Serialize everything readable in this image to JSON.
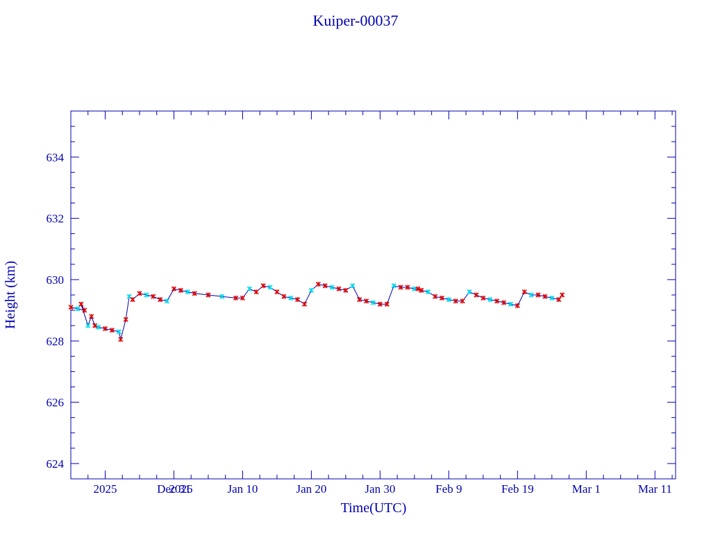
{
  "colors": {
    "text": "#0000b0",
    "axis": "#0000b0",
    "line": "#0000b0",
    "marker_red": "#dd0000",
    "marker_cyan": "#00d8e8"
  },
  "chart_data": {
    "type": "line",
    "title": "Kuiper-00037",
    "xlabel": "Time(UTC)",
    "ylabel": "Height (km)",
    "ylim": [
      623.5,
      635.5
    ],
    "xlim": [
      "2025-12-16",
      "2026-03-14"
    ],
    "yticks": [
      624,
      626,
      628,
      630,
      632,
      634
    ],
    "xtick_labels": [
      {
        "date": "2025-12-21",
        "label": "2025"
      },
      {
        "date": "2025-12-31",
        "label": "Dec 31"
      },
      {
        "date": "2026-01-01",
        "label": "2026"
      },
      {
        "date": "2026-01-10",
        "label": "Jan 10"
      },
      {
        "date": "2026-01-20",
        "label": "Jan 20"
      },
      {
        "date": "2026-01-30",
        "label": "Jan 30"
      },
      {
        "date": "2026-02-09",
        "label": "Feb  9"
      },
      {
        "date": "2026-02-19",
        "label": "Feb 19"
      },
      {
        "date": "2026-03-01",
        "label": "Mar  1"
      },
      {
        "date": "2026-03-11",
        "label": "Mar 11"
      }
    ],
    "grid": false,
    "series": [
      {
        "x": [
          "2025-12-16",
          "2025-12-17",
          "2025-12-18",
          "2025-12-17T12:00",
          "2025-12-18T12:00",
          "2025-12-19",
          "2025-12-19T12:00",
          "2025-12-20",
          "2025-12-21",
          "2025-12-22",
          "2025-12-23",
          "2025-12-23T06:00",
          "2025-12-24",
          "2025-12-24T12:00",
          "2025-12-25",
          "2025-12-26",
          "2025-12-27",
          "2025-12-28",
          "2025-12-29",
          "2025-12-30",
          "2025-12-31",
          "2026-01-01",
          "2026-01-02",
          "2026-01-03",
          "2026-01-05",
          "2026-01-07",
          "2026-01-09",
          "2026-01-10",
          "2026-01-11",
          "2026-01-12",
          "2026-01-13",
          "2026-01-14",
          "2026-01-15",
          "2026-01-16",
          "2026-01-17",
          "2026-01-18",
          "2026-01-19",
          "2026-01-20",
          "2026-01-21",
          "2026-01-22",
          "2026-01-23",
          "2026-01-24",
          "2026-01-25",
          "2026-01-26",
          "2026-01-27",
          "2026-01-28",
          "2026-01-29",
          "2026-01-30",
          "2026-01-31",
          "2026-02-01",
          "2026-02-02",
          "2026-02-03",
          "2026-02-04",
          "2026-02-04T12:00",
          "2026-02-05",
          "2026-02-06",
          "2026-02-07",
          "2026-02-08",
          "2026-02-09",
          "2026-02-10",
          "2026-02-11",
          "2026-02-12",
          "2026-02-13",
          "2026-02-14",
          "2026-02-15",
          "2026-02-16",
          "2026-02-17",
          "2026-02-18",
          "2026-02-19",
          "2026-02-20",
          "2026-02-21",
          "2026-02-22",
          "2026-02-23",
          "2026-02-24",
          "2026-02-25",
          "2026-02-25T12:00"
        ],
        "values": [
          629.1,
          629.05,
          629.0,
          629.2,
          628.5,
          628.8,
          628.5,
          628.45,
          628.4,
          628.35,
          628.3,
          628.05,
          628.7,
          629.45,
          629.35,
          629.55,
          629.5,
          629.45,
          629.35,
          629.3,
          629.7,
          629.65,
          629.6,
          629.55,
          629.5,
          629.45,
          629.4,
          629.4,
          629.7,
          629.6,
          629.8,
          629.75,
          629.6,
          629.45,
          629.4,
          629.35,
          629.2,
          629.65,
          629.85,
          629.8,
          629.75,
          629.7,
          629.65,
          629.8,
          629.35,
          629.3,
          629.25,
          629.2,
          629.2,
          629.8,
          629.75,
          629.75,
          629.7,
          629.7,
          629.65,
          629.6,
          629.45,
          629.4,
          629.35,
          629.3,
          629.3,
          629.6,
          629.5,
          629.4,
          629.35,
          629.3,
          629.25,
          629.2,
          629.15,
          629.6,
          629.5,
          629.5,
          629.45,
          629.4,
          629.35,
          629.5
        ]
      }
    ]
  }
}
